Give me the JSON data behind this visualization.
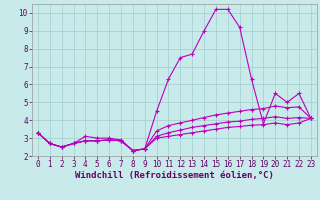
{
  "xlabel": "Windchill (Refroidissement éolien,°C)",
  "background_color": "#c8eaea",
  "grid_color": "#a0cccc",
  "line_color": "#bb00bb",
  "xlim": [
    -0.5,
    23.5
  ],
  "ylim": [
    2.0,
    10.5
  ],
  "xticks": [
    0,
    1,
    2,
    3,
    4,
    5,
    6,
    7,
    8,
    9,
    10,
    11,
    12,
    13,
    14,
    15,
    16,
    17,
    18,
    19,
    20,
    21,
    22,
    23
  ],
  "yticks": [
    2,
    3,
    4,
    5,
    6,
    7,
    8,
    9,
    10
  ],
  "line1_y": [
    3.3,
    2.7,
    2.5,
    2.7,
    3.1,
    3.0,
    3.0,
    2.9,
    2.3,
    2.4,
    4.5,
    6.3,
    7.5,
    7.7,
    9.0,
    10.2,
    10.2,
    9.2,
    6.3,
    3.8,
    5.5,
    5.0,
    5.5,
    4.1
  ],
  "line2_y": [
    3.3,
    2.7,
    2.5,
    2.7,
    2.85,
    2.85,
    2.9,
    2.85,
    2.3,
    2.4,
    3.4,
    3.7,
    3.85,
    4.0,
    4.15,
    4.3,
    4.4,
    4.5,
    4.6,
    4.65,
    4.8,
    4.7,
    4.75,
    4.1
  ],
  "line3_y": [
    3.3,
    2.7,
    2.5,
    2.7,
    2.85,
    2.85,
    2.9,
    2.85,
    2.3,
    2.4,
    3.1,
    3.3,
    3.45,
    3.6,
    3.7,
    3.8,
    3.9,
    3.95,
    4.05,
    4.1,
    4.2,
    4.1,
    4.15,
    4.1
  ],
  "line4_y": [
    3.3,
    2.7,
    2.5,
    2.7,
    2.85,
    2.85,
    2.9,
    2.85,
    2.3,
    2.4,
    3.0,
    3.1,
    3.2,
    3.3,
    3.4,
    3.5,
    3.6,
    3.65,
    3.72,
    3.75,
    3.85,
    3.75,
    3.85,
    4.1
  ],
  "marker": "+",
  "markersize": 3,
  "markeredgewidth": 0.8,
  "linewidth": 0.8,
  "tick_fontsize": 5.5,
  "label_fontsize": 6.5
}
